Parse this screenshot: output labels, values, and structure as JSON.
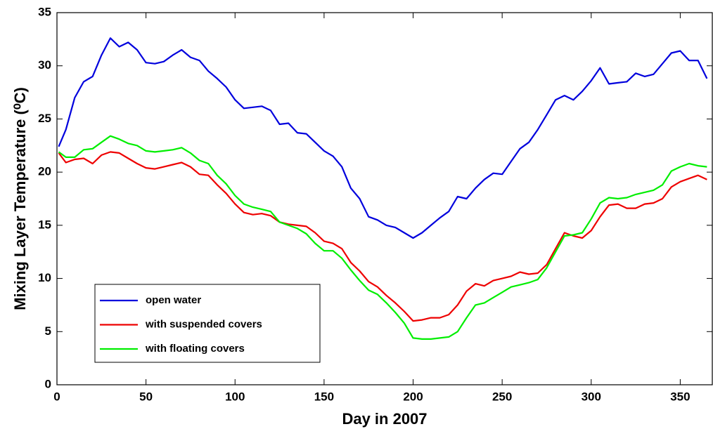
{
  "chart_data": {
    "type": "line",
    "xlabel": "Day in 2007",
    "ylabel": "Mixing Layer Temperature (⁰C)",
    "x": [
      1,
      5,
      10,
      15,
      20,
      25,
      30,
      35,
      40,
      45,
      50,
      55,
      60,
      65,
      70,
      75,
      80,
      85,
      90,
      95,
      100,
      105,
      110,
      115,
      120,
      125,
      130,
      135,
      140,
      145,
      150,
      155,
      160,
      165,
      170,
      175,
      180,
      185,
      190,
      195,
      200,
      205,
      210,
      215,
      220,
      225,
      230,
      235,
      240,
      245,
      250,
      255,
      260,
      265,
      270,
      275,
      280,
      285,
      290,
      295,
      300,
      305,
      310,
      315,
      320,
      325,
      330,
      335,
      340,
      345,
      350,
      355,
      360,
      365
    ],
    "series": [
      {
        "name": "open water",
        "color": "#0000dd",
        "values": [
          22.4,
          24,
          27,
          28.5,
          29,
          31,
          32.6,
          31.8,
          32.2,
          31.5,
          30.3,
          30.2,
          30.4,
          31,
          31.5,
          30.8,
          30.5,
          29.5,
          28.8,
          28,
          26.8,
          26,
          26.1,
          26.2,
          25.8,
          24.5,
          24.6,
          23.7,
          23.6,
          22.8,
          22,
          21.5,
          20.5,
          18.5,
          17.5,
          15.8,
          15.5,
          15,
          14.8,
          14.3,
          13.8,
          14.3,
          15,
          15.7,
          16.3,
          17.7,
          17.5,
          18.5,
          19.3,
          19.9,
          19.8,
          21,
          22.2,
          22.8,
          24,
          25.4,
          26.8,
          27.2,
          26.8,
          27.6,
          28.6,
          29.8,
          28.3,
          28.4,
          28.5,
          29.3,
          29,
          29.2,
          30.2,
          31.2,
          31.4,
          30.5,
          30.5,
          28.8
        ]
      },
      {
        "name": "with suspended covers",
        "color": "#ee0000",
        "values": [
          21.8,
          20.9,
          21.2,
          21.3,
          20.8,
          21.6,
          21.9,
          21.8,
          21.3,
          20.8,
          20.4,
          20.3,
          20.5,
          20.7,
          20.9,
          20.5,
          19.8,
          19.7,
          18.8,
          18,
          17,
          16.2,
          16,
          16.1,
          15.9,
          15.3,
          15.1,
          15,
          14.9,
          14.3,
          13.5,
          13.3,
          12.8,
          11.5,
          10.7,
          9.7,
          9.2,
          8.4,
          7.7,
          6.9,
          6.0,
          6.1,
          6.3,
          6.3,
          6.6,
          7.5,
          8.8,
          9.5,
          9.3,
          9.8,
          10,
          10.2,
          10.6,
          10.4,
          10.5,
          11.3,
          12.8,
          14.3,
          14,
          13.8,
          14.5,
          15.8,
          16.9,
          17,
          16.6,
          16.6,
          17,
          17.1,
          17.5,
          18.6,
          19.1,
          19.4,
          19.7,
          19.3
        ]
      },
      {
        "name": "with floating covers",
        "color": "#00ee00",
        "values": [
          21.9,
          21.4,
          21.4,
          22.1,
          22.2,
          22.8,
          23.4,
          23.1,
          22.7,
          22.5,
          22,
          21.9,
          22,
          22.1,
          22.3,
          21.8,
          21.1,
          20.8,
          19.7,
          18.9,
          17.8,
          17,
          16.7,
          16.5,
          16.3,
          15.3,
          15,
          14.7,
          14.2,
          13.3,
          12.6,
          12.6,
          11.9,
          10.8,
          9.8,
          8.9,
          8.5,
          7.7,
          6.8,
          5.8,
          4.4,
          4.3,
          4.3,
          4.4,
          4.5,
          5,
          6.3,
          7.5,
          7.7,
          8.2,
          8.7,
          9.2,
          9.4,
          9.6,
          9.9,
          11,
          12.5,
          14,
          14.1,
          14.3,
          15.6,
          17.1,
          17.6,
          17.5,
          17.6,
          17.9,
          18.1,
          18.3,
          18.8,
          20.1,
          20.5,
          20.8,
          20.6,
          20.5
        ]
      }
    ],
    "xlim": [
      0,
      368
    ],
    "xticks": [
      0,
      50,
      100,
      150,
      200,
      250,
      300,
      350
    ],
    "ylim": [
      0,
      35
    ],
    "yticks": [
      0,
      5,
      10,
      15,
      20,
      25,
      30,
      35
    ],
    "legend": "lower-left",
    "grid": false
  }
}
